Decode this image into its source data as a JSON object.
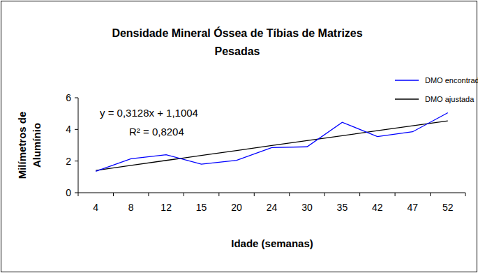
{
  "chart_data": {
    "type": "line",
    "title": [
      "Densidade Mineral Óssea de Tíbias de Matrizes",
      "Pesadas"
    ],
    "x_label": "Idade (semanas)",
    "y_label": [
      "Milímetros de",
      "Alumínio"
    ],
    "categories": [
      "4",
      "8",
      "12",
      "15",
      "20",
      "24",
      "30",
      "35",
      "42",
      "47",
      "52"
    ],
    "series": [
      {
        "name": "DMO encontrada",
        "color": "#0000ff",
        "line_style": "solid",
        "values": [
          1.35,
          2.15,
          2.4,
          1.8,
          2.05,
          2.85,
          2.9,
          4.45,
          3.55,
          3.85,
          5.05
        ]
      },
      {
        "name": "DMO ajustada",
        "color": "#000000",
        "line_style": "solid",
        "values": [
          1.41,
          1.73,
          2.04,
          2.35,
          2.66,
          2.98,
          3.29,
          3.6,
          3.92,
          4.23,
          4.54
        ]
      }
    ],
    "annotations": [
      "y = 0,3128x + 1,1004",
      "R² = 0,8204"
    ],
    "ylim": [
      0,
      6
    ],
    "yticks": [
      0,
      2,
      4,
      6
    ],
    "grid": false,
    "legend": "top-right"
  }
}
